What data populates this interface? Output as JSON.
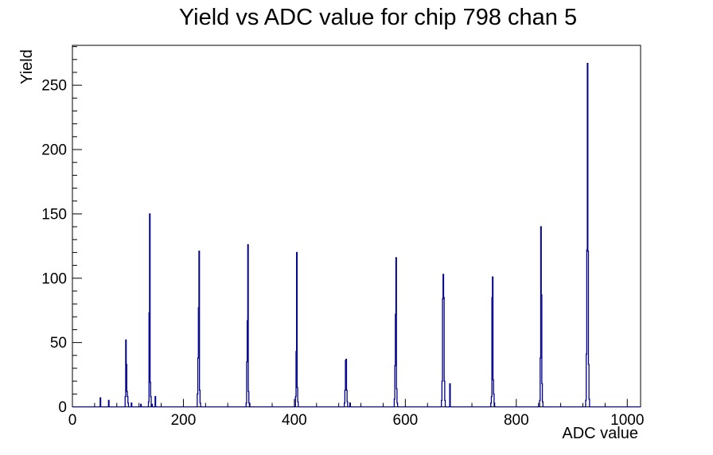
{
  "window": {
    "background": "#ffffff"
  },
  "chart_data": {
    "type": "bar",
    "subtype": "histogram-step-outline",
    "title": "Yield vs ADC value for chip 798 chan 5",
    "xlabel": "ADC value",
    "ylabel": "Yield",
    "xlim": [
      0,
      1024
    ],
    "ylim": [
      0,
      281
    ],
    "x_major_ticks": [
      0,
      200,
      400,
      600,
      800,
      1000
    ],
    "y_major_ticks": [
      0,
      50,
      100,
      150,
      200,
      250
    ],
    "x_minor_step": 40,
    "y_minor_step": 10,
    "grid": false,
    "legend": "none",
    "line_color": "#00008b",
    "axis_color": "#000000",
    "background_color": "#ffffff",
    "bin_width_adc": 1,
    "main_peaks": [
      {
        "adc": 96,
        "yield": 52
      },
      {
        "adc": 139,
        "yield": 150
      },
      {
        "adc": 228,
        "yield": 121
      },
      {
        "adc": 316,
        "yield": 126
      },
      {
        "adc": 404,
        "yield": 120
      },
      {
        "adc": 493,
        "yield": 37
      },
      {
        "adc": 583,
        "yield": 116
      },
      {
        "adc": 668,
        "yield": 103
      },
      {
        "adc": 757,
        "yield": 101
      },
      {
        "adc": 844,
        "yield": 140
      },
      {
        "adc": 928,
        "yield": 267
      }
    ],
    "bins": [
      [
        50,
        7
      ],
      [
        65,
        5
      ],
      [
        95,
        8
      ],
      [
        96,
        52
      ],
      [
        97,
        33
      ],
      [
        98,
        12
      ],
      [
        99,
        8
      ],
      [
        100,
        3
      ],
      [
        106,
        3
      ],
      [
        123,
        2
      ],
      [
        137,
        4
      ],
      [
        138,
        73
      ],
      [
        139,
        150
      ],
      [
        140,
        19
      ],
      [
        141,
        8
      ],
      [
        143,
        2
      ],
      [
        149,
        8
      ],
      [
        225,
        10
      ],
      [
        226,
        38
      ],
      [
        227,
        77
      ],
      [
        228,
        121
      ],
      [
        229,
        13
      ],
      [
        230,
        3
      ],
      [
        313,
        3
      ],
      [
        314,
        35
      ],
      [
        315,
        67
      ],
      [
        316,
        126
      ],
      [
        317,
        12
      ],
      [
        318,
        3
      ],
      [
        402,
        8
      ],
      [
        403,
        43
      ],
      [
        404,
        120
      ],
      [
        405,
        15
      ],
      [
        406,
        4
      ],
      [
        490,
        3
      ],
      [
        491,
        13
      ],
      [
        492,
        36
      ],
      [
        493,
        37
      ],
      [
        494,
        13
      ],
      [
        495,
        4
      ],
      [
        500,
        3
      ],
      [
        580,
        6
      ],
      [
        581,
        32
      ],
      [
        582,
        72
      ],
      [
        583,
        116
      ],
      [
        584,
        14
      ],
      [
        585,
        3
      ],
      [
        665,
        5
      ],
      [
        666,
        20
      ],
      [
        667,
        84
      ],
      [
        668,
        103
      ],
      [
        669,
        85
      ],
      [
        670,
        20
      ],
      [
        671,
        5
      ],
      [
        680,
        18
      ],
      [
        754,
        3
      ],
      [
        755,
        8
      ],
      [
        756,
        85
      ],
      [
        757,
        101
      ],
      [
        758,
        21
      ],
      [
        759,
        10
      ],
      [
        760,
        3
      ],
      [
        842,
        5
      ],
      [
        843,
        38
      ],
      [
        844,
        140
      ],
      [
        845,
        87
      ],
      [
        846,
        18
      ],
      [
        847,
        4
      ],
      [
        925,
        5
      ],
      [
        926,
        41
      ],
      [
        927,
        122
      ],
      [
        928,
        267
      ],
      [
        929,
        121
      ],
      [
        930,
        33
      ],
      [
        931,
        6
      ]
    ]
  }
}
